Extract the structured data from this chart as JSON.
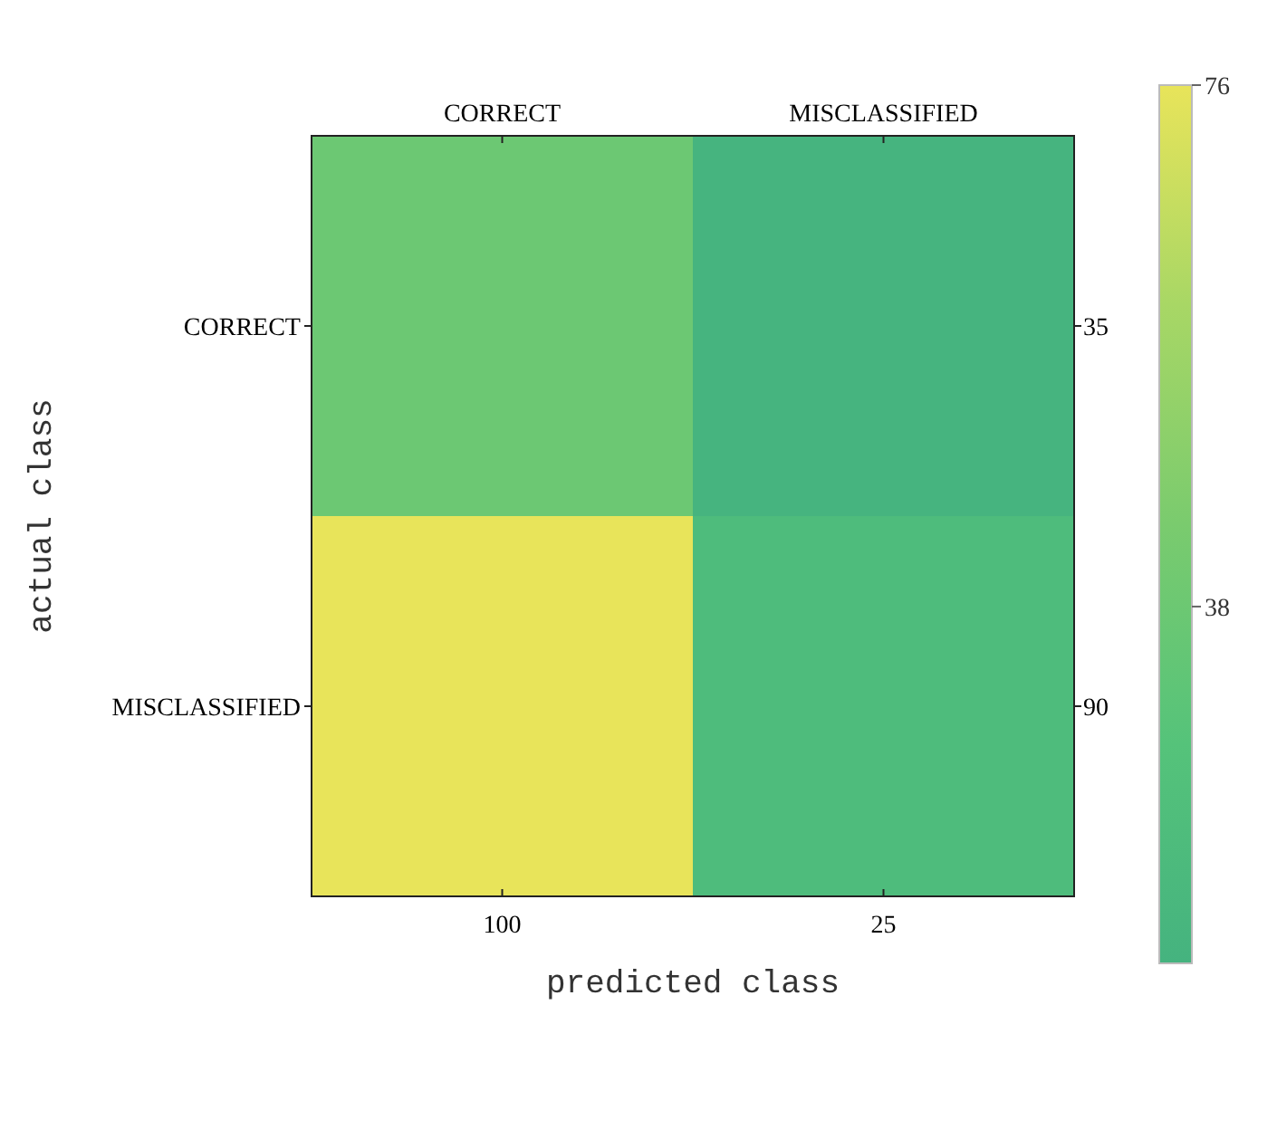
{
  "chart_data": {
    "type": "heatmap",
    "xlabel": "predicted class",
    "ylabel": "actual class",
    "categories": [
      "CORRECT",
      "MISCLASSIFIED"
    ],
    "y_categories": [
      "CORRECT",
      "MISCLASSIFIED"
    ],
    "y2_categories": [
      "35",
      "90"
    ],
    "cells": [
      [
        38,
        13
      ],
      [
        76,
        21
      ]
    ],
    "clim": [
      12,
      76
    ],
    "cticks": [
      38,
      76
    ],
    "annotations": [
      "100",
      "25"
    ]
  }
}
